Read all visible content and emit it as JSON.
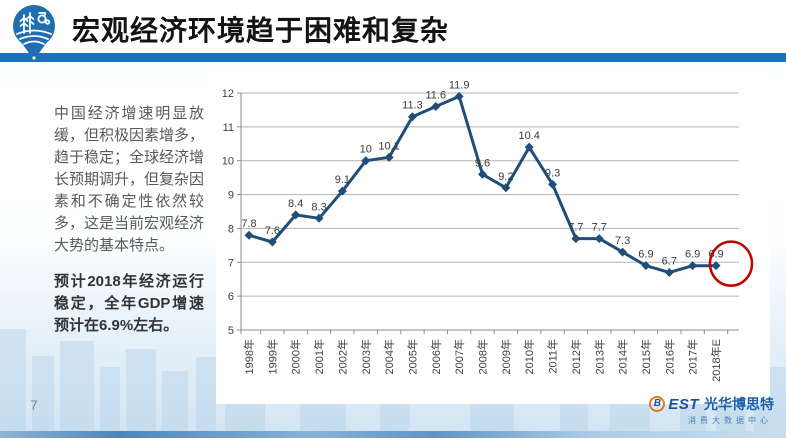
{
  "header": {
    "title": "宏观经济环境趋于困难和复杂"
  },
  "icons": {
    "header_logo": "agriculture-pin-logo",
    "brand_logo": "best-circle-logo"
  },
  "left_panel": {
    "para1": "中国经济增速明显放缓，但积极因素增多，趋于稳定；全球经济增长预期调升，但复杂因素和不确定性依然较多，这是当前宏观经济大势的基本特点。",
    "para2": "预计2018年经济运行稳定，全年GDP增速预计在6.9%左右。"
  },
  "chart_data": {
    "type": "line",
    "title": "",
    "xlabel": "",
    "ylabel": "",
    "categories": [
      "1998年",
      "1999年",
      "2000年",
      "2001年",
      "2002年",
      "2003年",
      "2004年",
      "2005年",
      "2006年",
      "2007年",
      "2008年",
      "2009年",
      "2010年",
      "2011年",
      "2012年",
      "2013年",
      "2014年",
      "2015年",
      "2016年",
      "2017年",
      "2018年E"
    ],
    "values": [
      7.8,
      7.6,
      8.4,
      8.3,
      9.1,
      10,
      10.1,
      11.3,
      11.6,
      11.9,
      9.6,
      9.2,
      10.4,
      9.3,
      7.7,
      7.7,
      7.3,
      6.9,
      6.7,
      6.9,
      6.9
    ],
    "ylim": [
      5,
      12
    ],
    "y_ticks": [
      5,
      6,
      7,
      8,
      9,
      10,
      11,
      12
    ],
    "grid": true,
    "legend": "none",
    "line_color": "#1F4E79",
    "label_color": "#3b3b3b",
    "highlight": {
      "index": 20,
      "shape": "red-circle",
      "color": "#C00000"
    }
  },
  "footer": {
    "page_number": "7",
    "brand_b": "B",
    "brand_rest": "EST",
    "brand_cn": "光华博思特",
    "brand_sub": "消费大数据中心"
  },
  "colors": {
    "header_bar": "#1B72B8",
    "logo_blue": "#1E6FB2",
    "line": "#1F4E79",
    "highlight": "#C00000"
  }
}
